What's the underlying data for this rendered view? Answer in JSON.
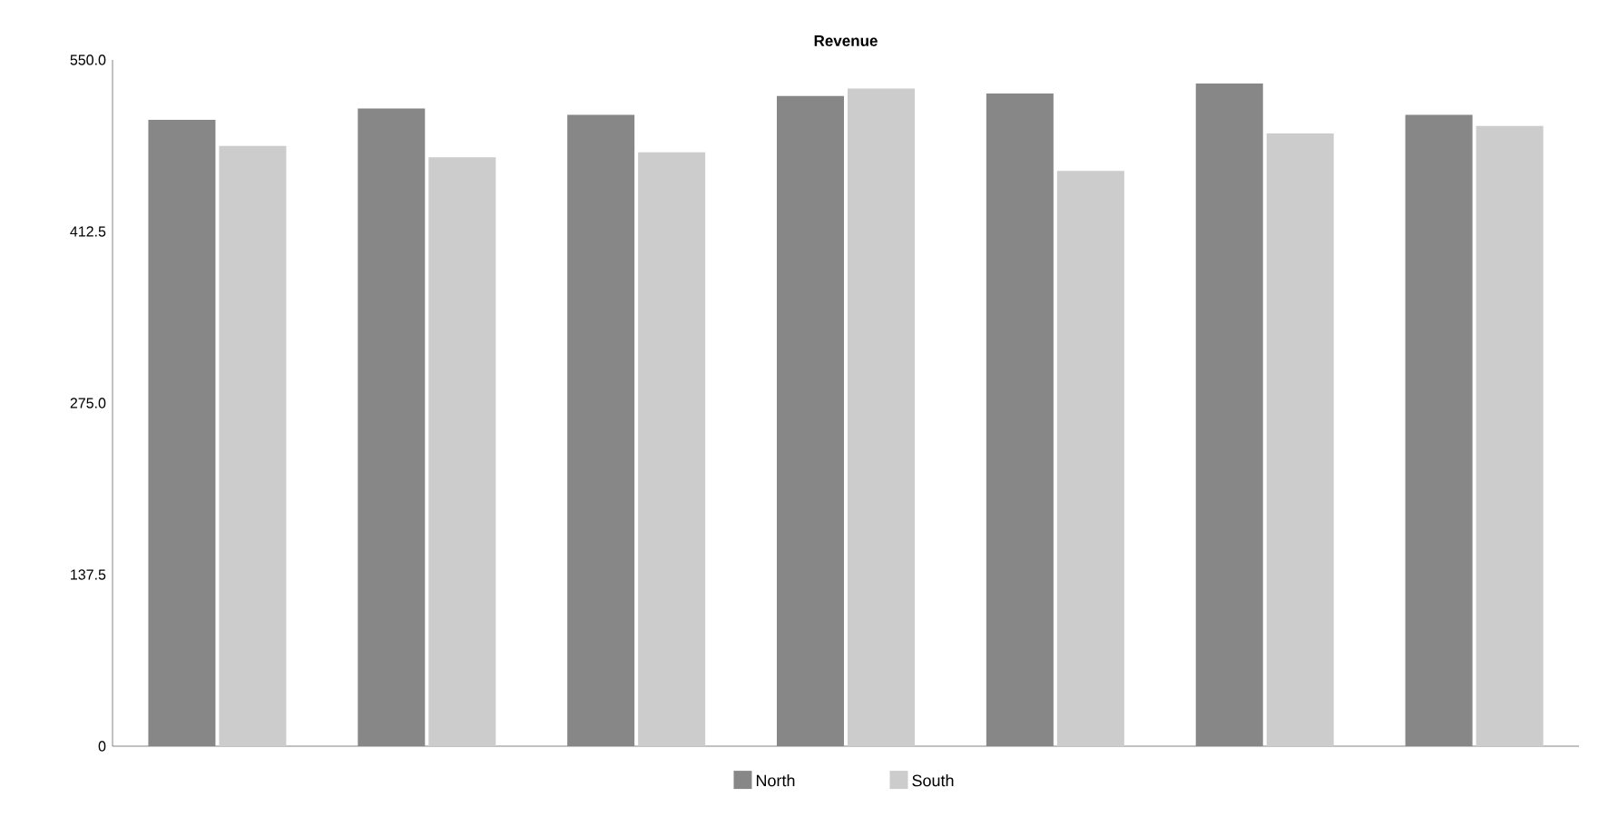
{
  "chart_data": {
    "type": "bar",
    "title": "Revenue",
    "categories": [
      null,
      null,
      null,
      null,
      null,
      null,
      null
    ],
    "series": [
      {
        "name": "North",
        "color": "#878787",
        "values": [
          502,
          511,
          506,
          521,
          523,
          531,
          506
        ]
      },
      {
        "name": "South",
        "color": "#cccccc",
        "values": [
          481,
          472,
          476,
          527,
          461,
          491,
          497
        ]
      }
    ],
    "ylim": [
      0,
      550
    ],
    "yticks": [
      0,
      {
        "value": 137.5,
        "label": "137.5"
      },
      {
        "value": 275,
        "label": "275.0"
      },
      {
        "value": 412.5,
        "label": "412.5"
      },
      {
        "value": 550,
        "label": "550.0"
      }
    ],
    "grid": false,
    "legend": "bottom"
  }
}
